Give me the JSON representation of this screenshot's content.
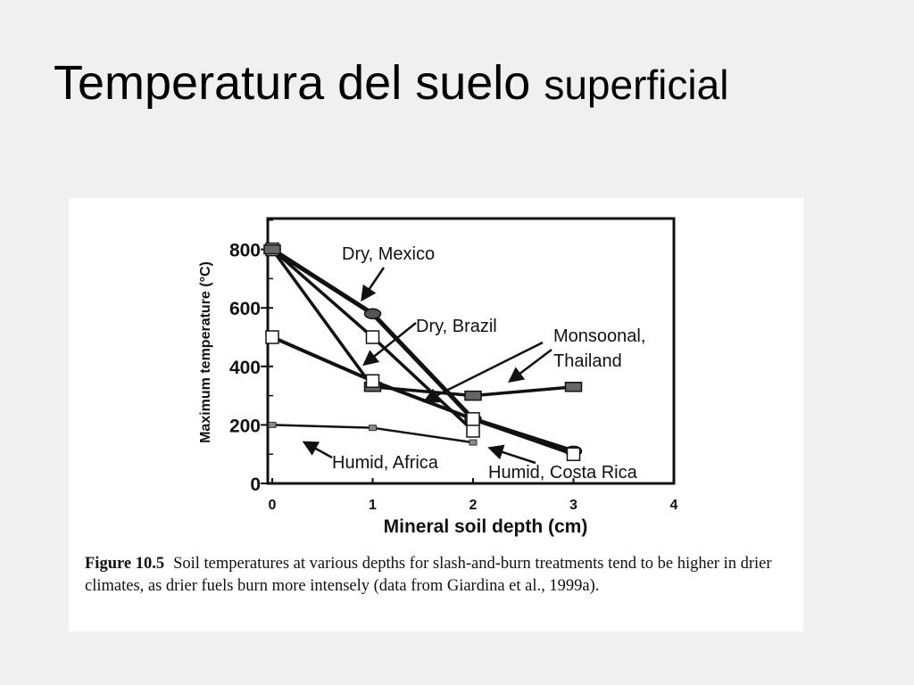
{
  "slide": {
    "title_main": "Temperatura del suelo",
    "title_suffix": "superficial"
  },
  "caption": {
    "label": "Figure 10.5",
    "text": "Soil temperatures at various depths for slash-and-burn treatments tend to be higher in drier climates, as drier fuels burn more intensely (data from Giardina et al., 1999a)."
  },
  "chart_data": {
    "type": "line",
    "xlabel": "Mineral soil depth (cm)",
    "ylabel": "Maximum temperature (°C)",
    "xlim": [
      0,
      4
    ],
    "ylim": [
      0,
      800
    ],
    "xticks": [
      "0",
      "1",
      "2",
      "3",
      "4"
    ],
    "yticks": [
      {
        "v": 800,
        "label": "800"
      },
      {
        "v": 600,
        "label": "600"
      },
      {
        "v": 400,
        "label": "400"
      },
      {
        "v": 200,
        "label": "200"
      },
      {
        "v": 0,
        "label": "0"
      }
    ],
    "series": [
      {
        "name": "Dry, Mexico",
        "x": [
          0,
          1,
          2,
          3
        ],
        "y": [
          800,
          580,
          220,
          110
        ],
        "marker": "oval"
      },
      {
        "name": "Dry, Brazil",
        "x": [
          0,
          1,
          2
        ],
        "y": [
          800,
          500,
          180
        ],
        "marker": "square"
      },
      {
        "name": "Monsoonal, Thailand",
        "x": [
          0,
          1,
          2,
          3
        ],
        "y": [
          800,
          330,
          300,
          330
        ],
        "marker": "filled-rect"
      },
      {
        "name": "Humid, Costa Rica",
        "x": [
          0,
          1,
          2,
          3
        ],
        "y": [
          500,
          350,
          220,
          100
        ],
        "marker": "square"
      },
      {
        "name": "Humid, Africa",
        "x": [
          0,
          1,
          2
        ],
        "y": [
          200,
          190,
          140
        ],
        "marker": "small"
      }
    ],
    "annotations": [
      {
        "text": "Dry, Mexico"
      },
      {
        "text": "Dry, Brazil"
      },
      {
        "text": "Monsoonal,"
      },
      {
        "text": "Thailand"
      },
      {
        "text": "Humid, Africa"
      },
      {
        "text": "Humid, Costa Rica"
      }
    ]
  }
}
